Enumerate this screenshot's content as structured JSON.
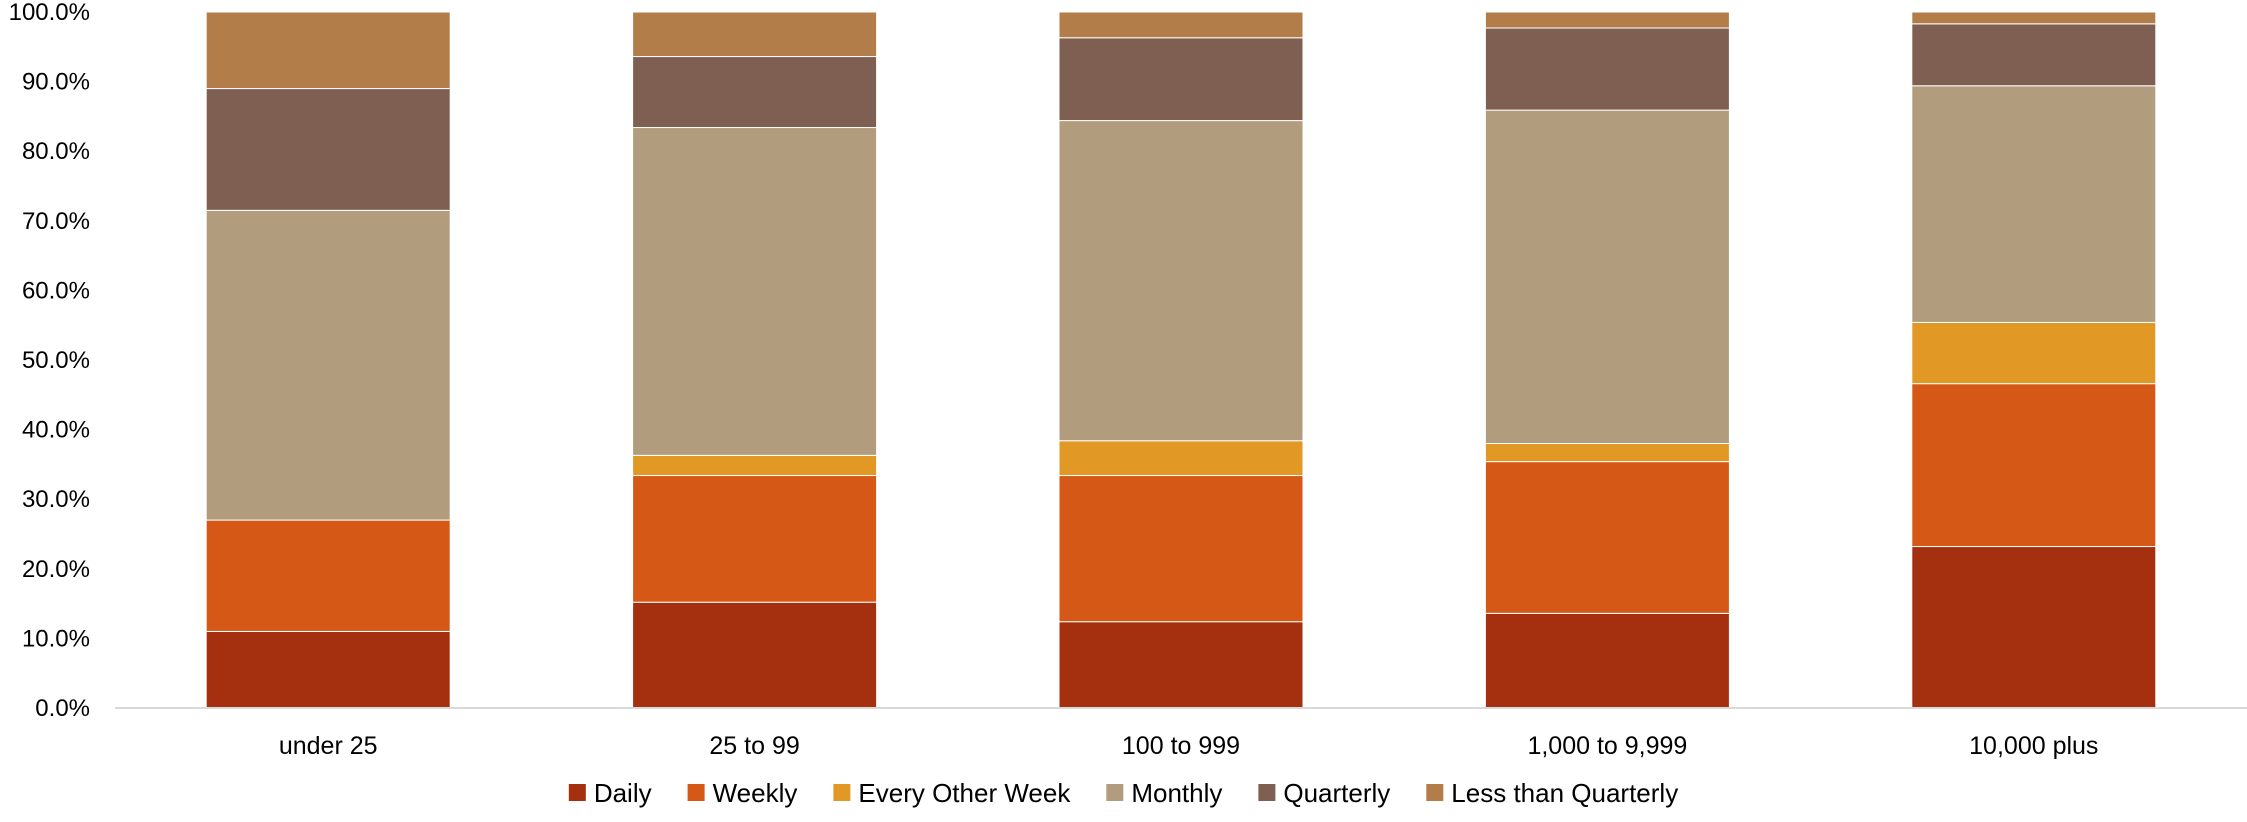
{
  "chart_data": {
    "type": "bar",
    "stacked": true,
    "categories": [
      "under 25",
      "25 to 99",
      "100 to 999",
      "1,000 to 9,999",
      "10,000 plus"
    ],
    "series": [
      {
        "name": "Daily",
        "color": "#A5300F",
        "values": [
          11.0,
          15.2,
          12.4,
          13.6,
          23.2
        ]
      },
      {
        "name": "Weekly",
        "color": "#D55816",
        "values": [
          16.0,
          18.2,
          21.0,
          21.8,
          23.4
        ]
      },
      {
        "name": "Every Other Week",
        "color": "#E19825",
        "values": [
          0.0,
          2.9,
          5.0,
          2.6,
          8.8
        ]
      },
      {
        "name": "Monthly",
        "color": "#B19C7D",
        "values": [
          44.5,
          47.1,
          46.0,
          47.9,
          34.0
        ]
      },
      {
        "name": "Quarterly",
        "color": "#7F5F52",
        "values": [
          17.5,
          10.2,
          11.9,
          11.8,
          8.9
        ]
      },
      {
        "name": "Less than Quarterly",
        "color": "#B27D49",
        "values": [
          11.0,
          6.4,
          3.7,
          2.3,
          1.7
        ]
      }
    ],
    "ylim": [
      0,
      100
    ],
    "yticks": [
      "0.0%",
      "10.0%",
      "20.0%",
      "30.0%",
      "40.0%",
      "50.0%",
      "60.0%",
      "70.0%",
      "80.0%",
      "90.0%",
      "100.0%"
    ],
    "title": "",
    "xlabel": "",
    "ylabel": "",
    "grid": false,
    "legend_position": "bottom"
  }
}
